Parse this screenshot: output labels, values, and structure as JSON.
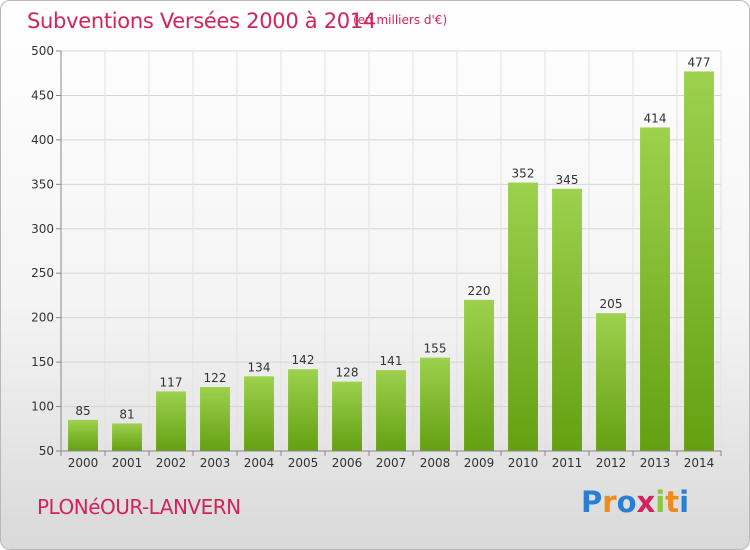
{
  "title": "Subventions Versées 2000 à 2014",
  "subtitle": "(en milliers d'€)",
  "commune": "PLONéOUR-LANVERN",
  "logo": {
    "letters": [
      "P",
      "r",
      "o",
      "x",
      "i",
      "t",
      "i"
    ],
    "colors": [
      "#2a7fd4",
      "#f08a1c",
      "#2a7fd4",
      "#d2235a",
      "#8dc63f",
      "#f08a1c",
      "#2a7fd4"
    ]
  },
  "colors": {
    "bar_light": "#9dd14e",
    "bar_dark": "#64a012",
    "accent": "#d2235a"
  },
  "chart_data": {
    "type": "bar",
    "categories": [
      "2000",
      "2001",
      "2002",
      "2003",
      "2004",
      "2005",
      "2006",
      "2007",
      "2008",
      "2009",
      "2010",
      "2011",
      "2012",
      "2013",
      "2014"
    ],
    "values": [
      85,
      81,
      117,
      122,
      134,
      142,
      128,
      141,
      155,
      220,
      352,
      345,
      205,
      414,
      477
    ],
    "ylim": [
      50,
      500
    ],
    "yticks": [
      50,
      100,
      150,
      200,
      250,
      300,
      350,
      400,
      450,
      500
    ],
    "grid": true
  }
}
